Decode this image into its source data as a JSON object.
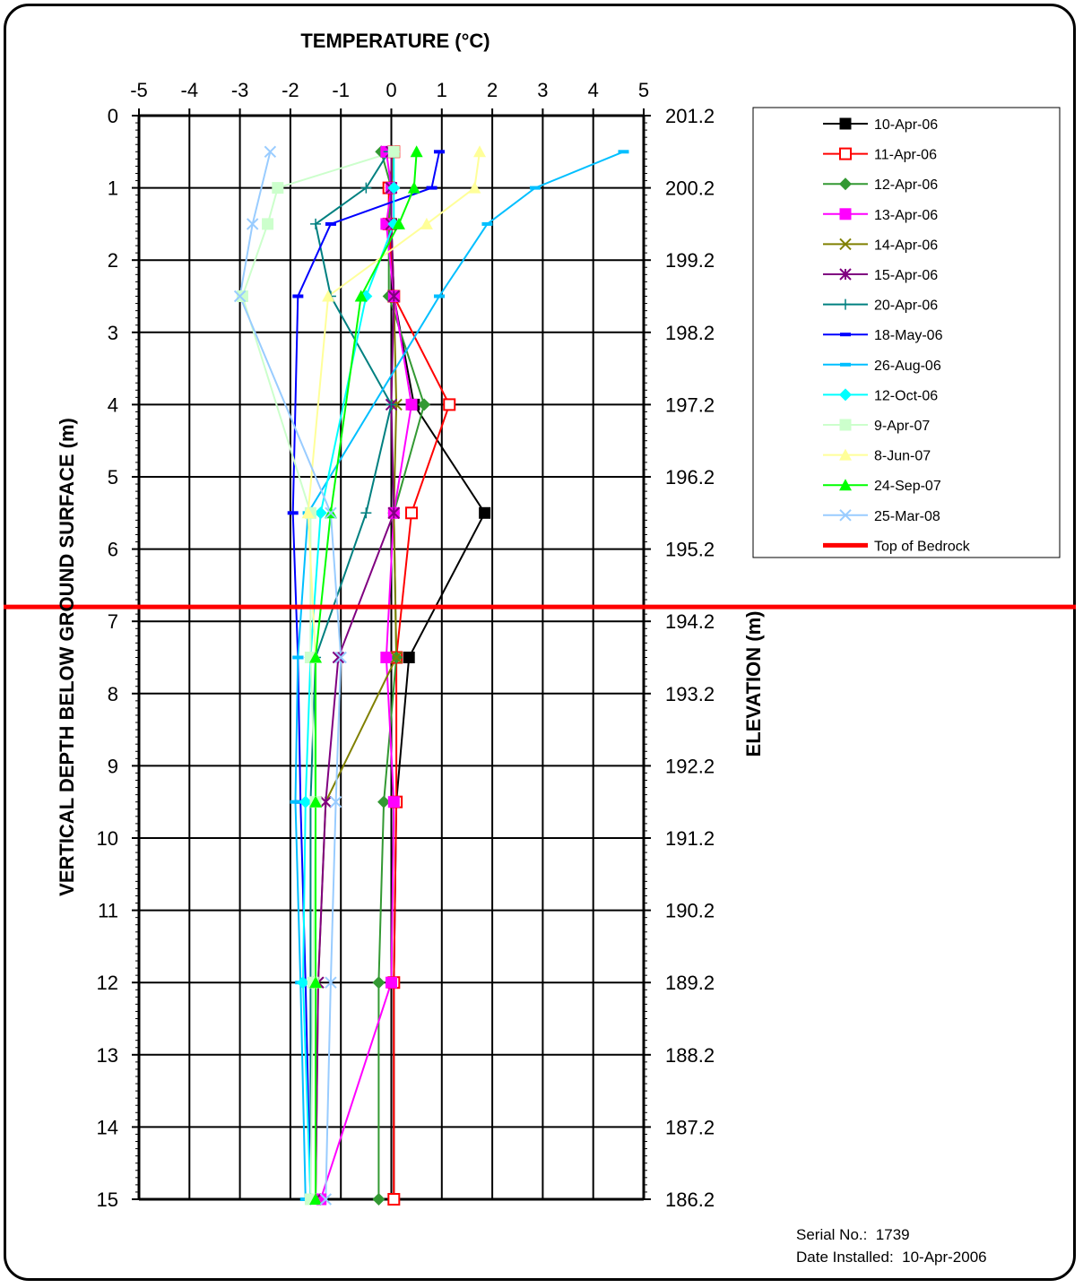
{
  "chart_data": {
    "type": "line",
    "x_axis_title": "TEMPERATURE (°C)",
    "y_axis_title": "VERTICAL DEPTH BELOW GROUND SURFACE (m)",
    "y2_axis_title": "ELEVATION (m)",
    "xlim": [
      -5,
      5
    ],
    "ylim": [
      0,
      15
    ],
    "y_inverted": true,
    "x_axis_position": "top",
    "x_ticks": [
      "-5",
      "-4",
      "-3",
      "-2",
      "-1",
      "0",
      "1",
      "2",
      "3",
      "4",
      "5"
    ],
    "y_ticks": [
      "0",
      "1",
      "2",
      "3",
      "4",
      "5",
      "6",
      "7",
      "8",
      "9",
      "10",
      "11",
      "12",
      "13",
      "14",
      "15"
    ],
    "y2_ticks": [
      "201.2",
      "200.2",
      "199.2",
      "198.2",
      "197.2",
      "196.2",
      "195.2",
      "194.2",
      "193.2",
      "192.2",
      "191.2",
      "190.2",
      "189.2",
      "188.2",
      "187.2",
      "186.2"
    ],
    "grid": true,
    "legend_position": "right",
    "bedrock": {
      "name": "Top of Bedrock",
      "depth": 6.8,
      "color": "#ff0000"
    },
    "series": [
      {
        "name": "10-Apr-06",
        "color": "#000000",
        "marker": "square-filled",
        "points": [
          [
            0.05,
            0.5
          ],
          [
            0.0,
            1.0
          ],
          [
            0.0,
            1.5
          ],
          [
            0.05,
            2.5
          ],
          [
            0.45,
            4.0
          ],
          [
            1.85,
            5.5
          ],
          [
            0.35,
            7.5
          ],
          [
            0.1,
            9.5
          ],
          [
            0.05,
            12.0
          ],
          [
            0.05,
            15.0
          ]
        ]
      },
      {
        "name": "11-Apr-06",
        "color": "#ff0000",
        "marker": "square-open",
        "points": [
          [
            0.05,
            0.5
          ],
          [
            -0.05,
            1.0
          ],
          [
            -0.05,
            1.5
          ],
          [
            0.05,
            2.5
          ],
          [
            1.15,
            4.0
          ],
          [
            0.4,
            5.5
          ],
          [
            0.1,
            7.5
          ],
          [
            0.1,
            9.5
          ],
          [
            0.05,
            12.0
          ],
          [
            0.05,
            15.0
          ]
        ]
      },
      {
        "name": "12-Apr-06",
        "color": "#339933",
        "marker": "diamond",
        "points": [
          [
            -0.2,
            0.5
          ],
          [
            0.0,
            1.0
          ],
          [
            -0.05,
            1.5
          ],
          [
            -0.05,
            2.5
          ],
          [
            0.65,
            4.0
          ],
          [
            0.05,
            5.5
          ],
          [
            0.1,
            7.5
          ],
          [
            -0.15,
            9.5
          ],
          [
            -0.25,
            12.0
          ],
          [
            -0.25,
            15.0
          ]
        ]
      },
      {
        "name": "13-Apr-06",
        "color": "#ff00ff",
        "marker": "square-filled",
        "points": [
          [
            -0.1,
            0.5
          ],
          [
            0.0,
            1.0
          ],
          [
            -0.1,
            1.5
          ],
          [
            0.05,
            2.5
          ],
          [
            0.4,
            4.0
          ],
          [
            0.05,
            5.5
          ],
          [
            -0.1,
            7.5
          ],
          [
            0.05,
            9.5
          ],
          [
            0.0,
            12.0
          ],
          [
            -1.4,
            15.0
          ]
        ]
      },
      {
        "name": "14-Apr-06",
        "color": "#808000",
        "marker": "x",
        "points": [
          [
            0.05,
            0.5
          ],
          [
            0.0,
            1.0
          ],
          [
            0.0,
            1.5
          ],
          [
            0.05,
            2.5
          ],
          [
            0.1,
            4.0
          ],
          [
            0.05,
            5.5
          ],
          [
            0.1,
            7.5
          ],
          [
            -1.3,
            9.5
          ],
          [
            -1.45,
            12.0
          ],
          [
            -1.5,
            15.0
          ]
        ]
      },
      {
        "name": "15-Apr-06",
        "color": "#800080",
        "marker": "star",
        "points": [
          [
            0.0,
            0.5
          ],
          [
            0.0,
            1.0
          ],
          [
            0.0,
            1.5
          ],
          [
            0.05,
            2.5
          ],
          [
            0.0,
            4.0
          ],
          [
            0.05,
            5.5
          ],
          [
            -1.05,
            7.5
          ],
          [
            -1.3,
            9.5
          ],
          [
            -1.45,
            12.0
          ],
          [
            -1.5,
            15.0
          ]
        ]
      },
      {
        "name": "20-Apr-06",
        "color": "#008080",
        "marker": "plus",
        "points": [
          [
            -0.05,
            0.5
          ],
          [
            -0.5,
            1.0
          ],
          [
            -1.5,
            1.5
          ],
          [
            -1.2,
            2.5
          ],
          [
            0.0,
            4.0
          ],
          [
            -0.5,
            5.5
          ],
          [
            -1.5,
            7.5
          ],
          [
            -1.6,
            9.5
          ],
          [
            -1.6,
            12.0
          ],
          [
            -1.6,
            15.0
          ]
        ]
      },
      {
        "name": "18-May-06",
        "color": "#0000ff",
        "marker": "dash",
        "points": [
          [
            0.95,
            0.5
          ],
          [
            0.8,
            1.0
          ],
          [
            -1.2,
            1.5
          ],
          [
            -1.85,
            2.5
          ],
          [
            -1.95,
            5.5
          ],
          [
            -1.85,
            7.5
          ],
          [
            -1.8,
            9.5
          ],
          [
            -1.7,
            12.0
          ],
          [
            -1.6,
            15.0
          ]
        ]
      },
      {
        "name": "26-Aug-06",
        "color": "#00bfff",
        "marker": "dash",
        "points": [
          [
            4.6,
            0.5
          ],
          [
            2.85,
            1.0
          ],
          [
            1.9,
            1.5
          ],
          [
            0.95,
            2.5
          ],
          [
            -1.65,
            5.5
          ],
          [
            -1.85,
            7.5
          ],
          [
            -1.9,
            9.5
          ],
          [
            -1.8,
            12.0
          ],
          [
            -1.7,
            15.0
          ]
        ]
      },
      {
        "name": "12-Oct-06",
        "color": "#00ffff",
        "marker": "diamond",
        "points": [
          [
            0.05,
            0.5
          ],
          [
            0.05,
            1.0
          ],
          [
            0.05,
            1.5
          ],
          [
            -0.5,
            2.5
          ],
          [
            -1.4,
            5.5
          ],
          [
            -1.6,
            7.5
          ],
          [
            -1.7,
            9.5
          ],
          [
            -1.75,
            12.0
          ],
          [
            -1.6,
            15.0
          ]
        ]
      },
      {
        "name": "9-Apr-07",
        "color": "#ccffcc",
        "marker": "square-filled",
        "points": [
          [
            0.05,
            0.5
          ],
          [
            -2.25,
            1.0
          ],
          [
            -2.45,
            1.5
          ],
          [
            -2.95,
            2.5
          ],
          [
            -1.6,
            5.5
          ],
          [
            -1.6,
            7.5
          ],
          [
            -1.5,
            9.5
          ],
          [
            -1.55,
            12.0
          ],
          [
            -1.6,
            15.0
          ]
        ]
      },
      {
        "name": "8-Jun-07",
        "color": "#ffff99",
        "marker": "triangle",
        "points": [
          [
            1.75,
            0.5
          ],
          [
            1.65,
            1.0
          ],
          [
            0.7,
            1.5
          ],
          [
            -1.25,
            2.5
          ],
          [
            -1.65,
            5.5
          ],
          [
            -1.5,
            7.5
          ],
          [
            -1.5,
            9.5
          ],
          [
            -1.5,
            12.0
          ],
          [
            -1.5,
            15.0
          ]
        ]
      },
      {
        "name": "24-Sep-07",
        "color": "#00ff00",
        "marker": "triangle",
        "points": [
          [
            0.5,
            0.5
          ],
          [
            0.45,
            1.0
          ],
          [
            0.15,
            1.5
          ],
          [
            -0.6,
            2.5
          ],
          [
            -1.2,
            5.5
          ],
          [
            -1.5,
            7.5
          ],
          [
            -1.5,
            9.5
          ],
          [
            -1.5,
            12.0
          ],
          [
            -1.5,
            15.0
          ]
        ]
      },
      {
        "name": "25-Mar-08",
        "color": "#99ccff",
        "marker": "x",
        "points": [
          [
            -2.4,
            0.5
          ],
          [
            -2.75,
            1.5
          ],
          [
            -3.0,
            2.5
          ],
          [
            -1.2,
            5.5
          ],
          [
            -1.0,
            7.5
          ],
          [
            -1.1,
            9.5
          ],
          [
            -1.2,
            12.0
          ],
          [
            -1.3,
            15.0
          ]
        ]
      }
    ]
  },
  "footer": {
    "serial_label": "Serial No.:  1739",
    "installed_label": "Date Installed:  10-Apr-2006"
  }
}
